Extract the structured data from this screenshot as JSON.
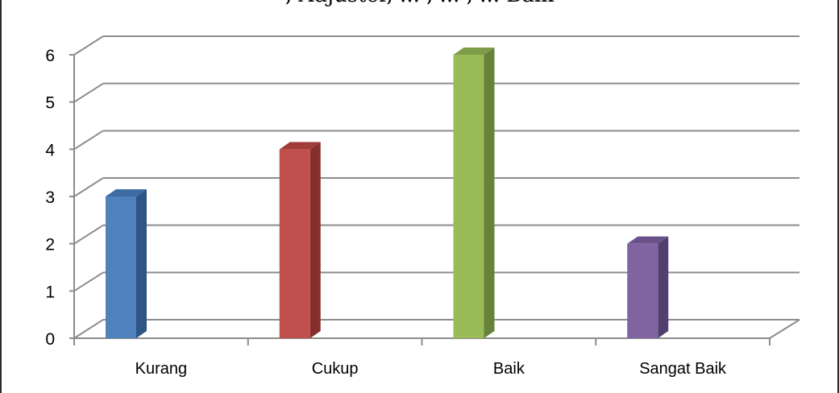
{
  "top_fragment": ", Adjuster, ... , ... , ... Baik",
  "chart_data": {
    "type": "bar",
    "categories": [
      "Kurang",
      "Cukup",
      "Baik",
      "Sangat Baik"
    ],
    "values": [
      3,
      4,
      6,
      2
    ],
    "ylim": [
      0,
      6
    ],
    "yticks": [
      "0",
      "1",
      "2",
      "3",
      "4",
      "5",
      "6"
    ],
    "grid": true,
    "legend": "none",
    "colors": {
      "front": [
        "#4f81bd",
        "#c0504d",
        "#9bbb59",
        "#8064a2"
      ],
      "side": [
        "#2e5583",
        "#862e2c",
        "#67823a",
        "#533f6f"
      ],
      "top": [
        "#3d6ba4",
        "#a03c3a",
        "#7f9c48",
        "#69528a"
      ],
      "grid": "#8c8c8c",
      "axis": "#8c8c8c"
    }
  }
}
